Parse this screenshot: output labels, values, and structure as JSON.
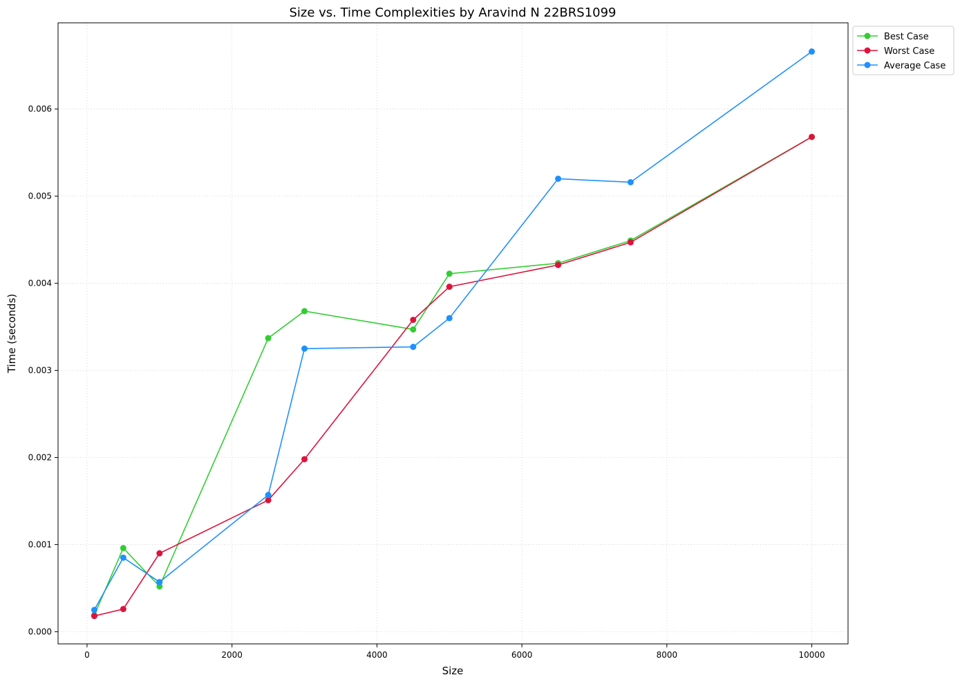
{
  "chart_data": {
    "type": "line",
    "title": "Size vs. Time Complexities by Aravind N 22BRS1099",
    "xlabel": "Size",
    "ylabel": "Time (seconds)",
    "xlim": [
      -400,
      10500
    ],
    "ylim": [
      -0.00014,
      0.00699
    ],
    "x_ticks": [
      0,
      2000,
      4000,
      6000,
      8000,
      10000
    ],
    "x_tick_labels": [
      "0",
      "2000",
      "4000",
      "6000",
      "8000",
      "10000"
    ],
    "y_ticks": [
      0,
      0.001,
      0.002,
      0.003,
      0.004,
      0.005,
      0.006
    ],
    "y_tick_labels": [
      "0.000",
      "0.001",
      "0.002",
      "0.003",
      "0.004",
      "0.005",
      "0.006"
    ],
    "grid": true,
    "legend_position": "outside-top-right",
    "x": [
      100,
      500,
      1000,
      2500,
      3000,
      4500,
      5000,
      6500,
      7500,
      10000
    ],
    "series": [
      {
        "name": "Best Case",
        "color": "#32cd32",
        "values": [
          0.00019,
          0.00096,
          0.00052,
          0.00337,
          0.00368,
          0.00347,
          0.00411,
          0.00423,
          0.00449,
          0.00568
        ]
      },
      {
        "name": "Worst Case",
        "color": "#dc143c",
        "values": [
          0.00018,
          0.00026,
          0.0009,
          0.00151,
          0.00198,
          0.00358,
          0.00396,
          0.00421,
          0.00447,
          0.00568
        ]
      },
      {
        "name": "Average Case",
        "color": "#1e90ff",
        "values": [
          0.00025,
          0.00085,
          0.00057,
          0.00157,
          0.00325,
          0.00327,
          0.0036,
          0.0052,
          0.00516,
          0.00666
        ]
      }
    ]
  }
}
